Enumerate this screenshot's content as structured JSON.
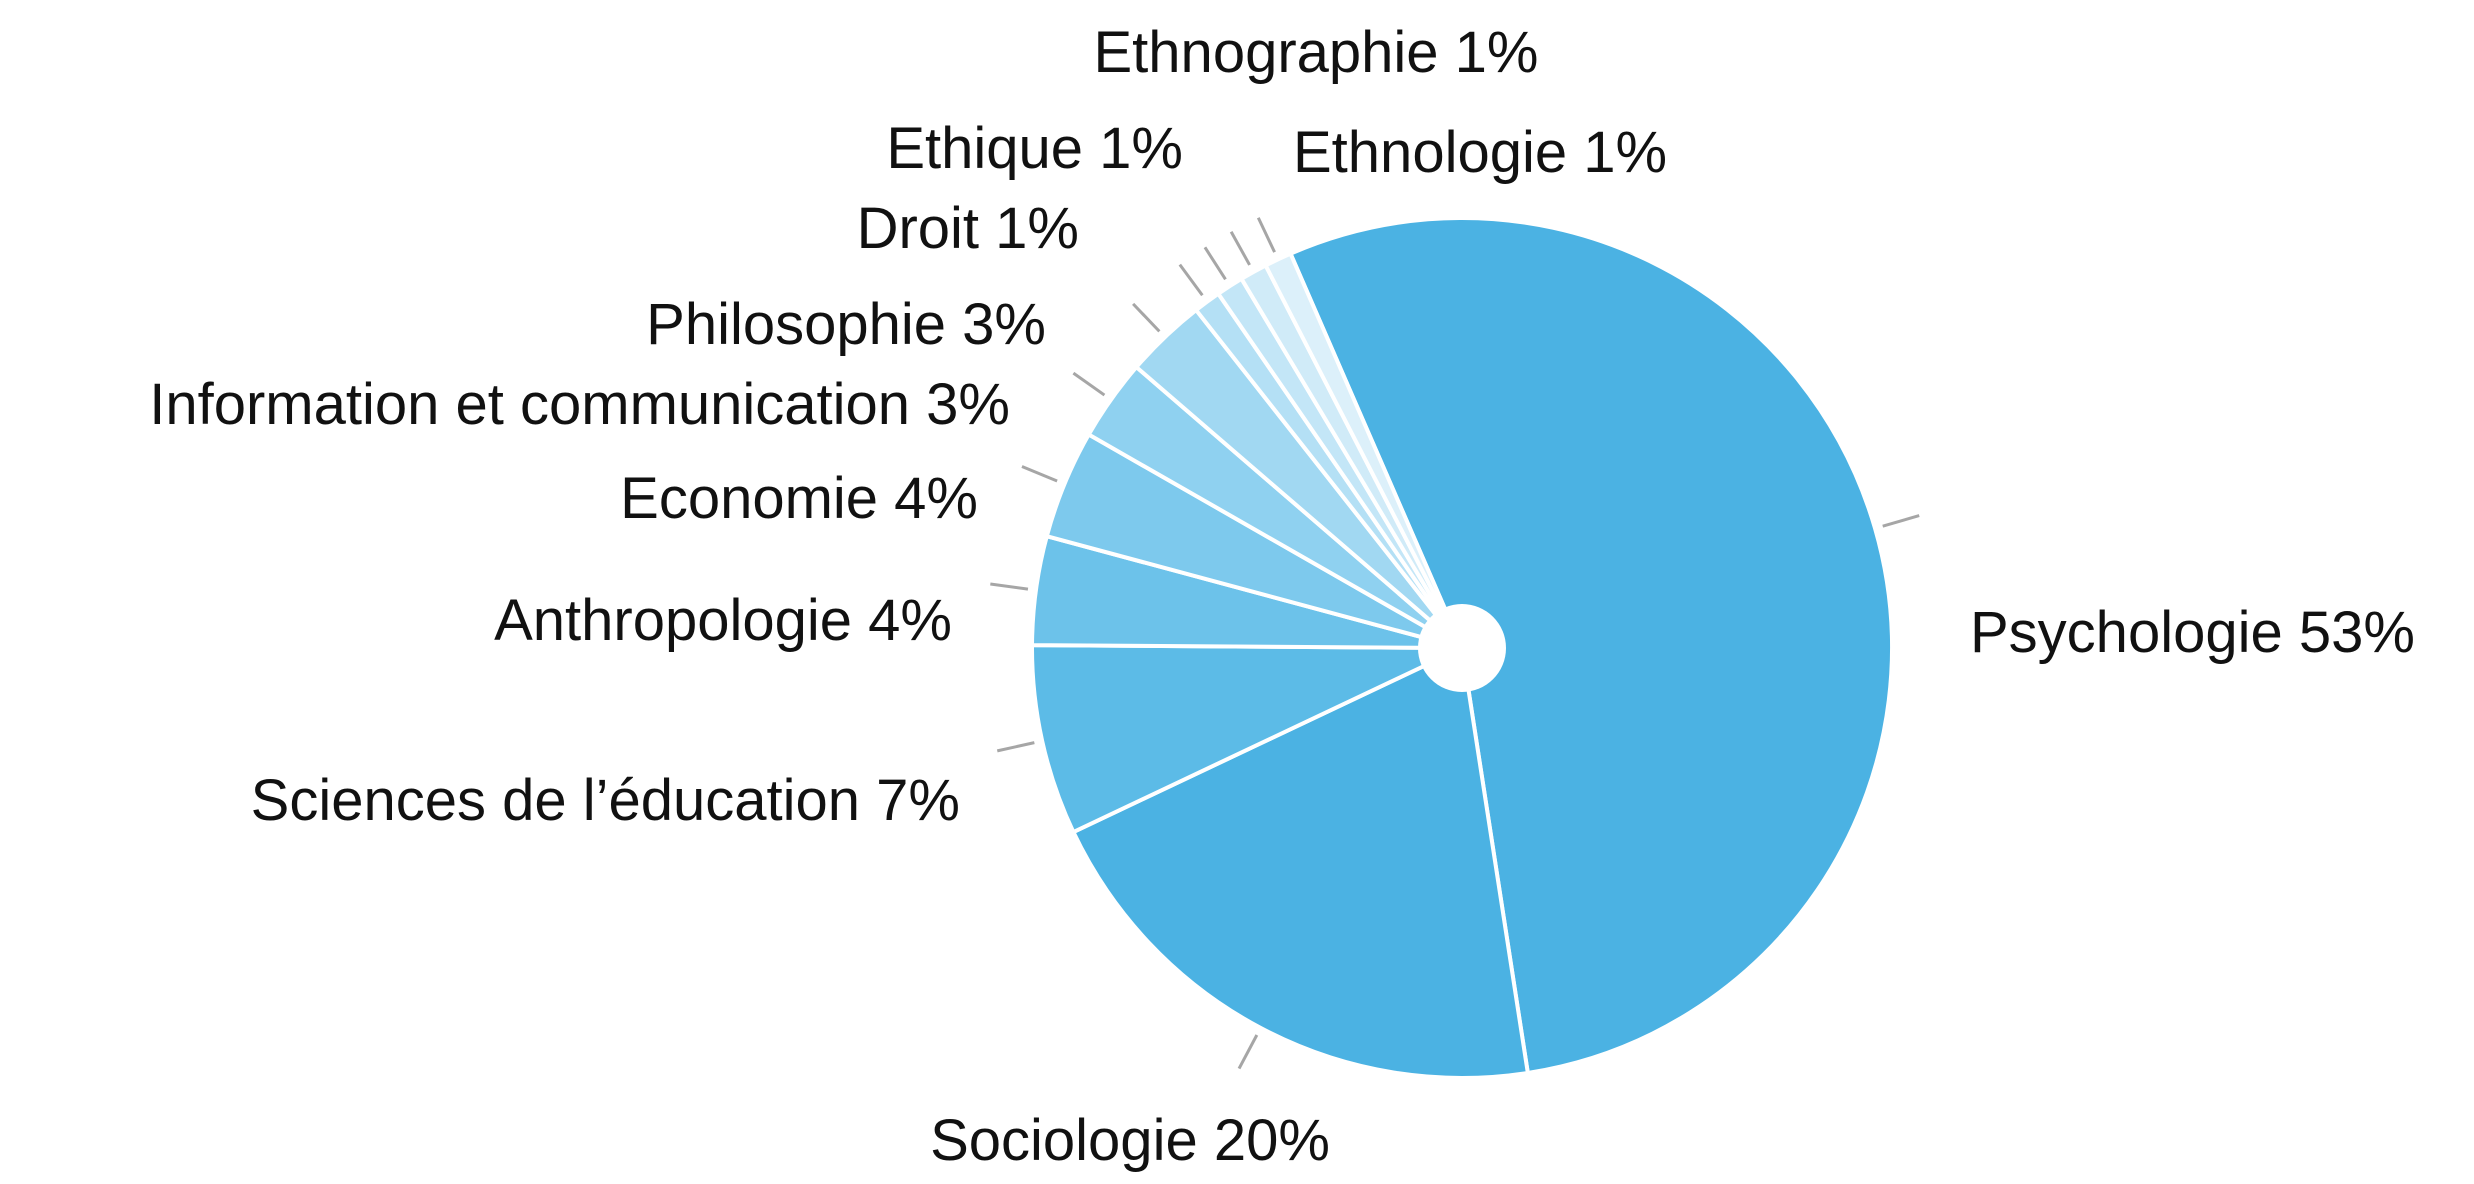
{
  "chart_data": {
    "type": "pie",
    "title": "",
    "legend": "none",
    "slices": [
      {
        "label": "Psychologie 53%",
        "category": "Psychologie",
        "value": 53,
        "color": "#4bb2e3"
      },
      {
        "label": "Sociologie 20%",
        "category": "Sociologie",
        "value": 20,
        "color": "#4bb2e3"
      },
      {
        "label": "Sciences de l’éducation 7%",
        "category": "Sciences de l’éducation",
        "value": 7,
        "color": "#5cbbe7"
      },
      {
        "label": "Anthropologie 4%",
        "category": "Anthropologie",
        "value": 4,
        "color": "#6cc2ea"
      },
      {
        "label": "Economie 4%",
        "category": "Economie",
        "value": 4,
        "color": "#7dc9ed"
      },
      {
        "label": "Information et communication 3%",
        "category": "Information et communication",
        "value": 3,
        "color": "#8fd1f0"
      },
      {
        "label": "Philosophie 3%",
        "category": "Philosophie",
        "value": 3,
        "color": "#a1d8f2"
      },
      {
        "label": "Droit 1%",
        "category": "Droit",
        "value": 1,
        "color": "#b4e0f5"
      },
      {
        "label": "Ethique 1%",
        "category": "Ethique",
        "value": 1,
        "color": "#c3e6f7"
      },
      {
        "label": "Ethnographie 1%",
        "category": "Ethnographie",
        "value": 1,
        "color": "#d0ebf8"
      },
      {
        "label": "Ethnologie 1%",
        "category": "Ethnologie",
        "value": 1,
        "color": "#dcf0fa"
      }
    ],
    "center_hole": true,
    "label_placement": "outside-with-leader-lines"
  }
}
